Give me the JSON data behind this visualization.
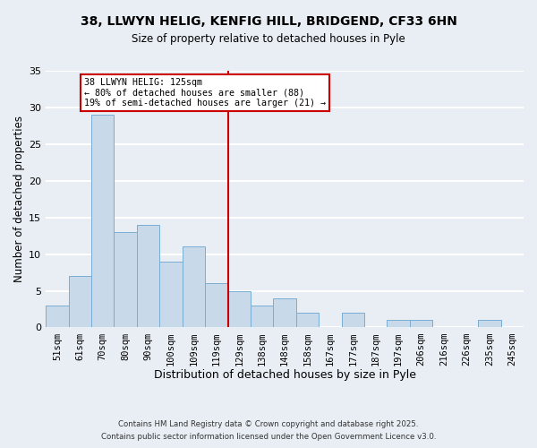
{
  "title": "38, LLWYN HELIG, KENFIG HILL, BRIDGEND, CF33 6HN",
  "subtitle": "Size of property relative to detached houses in Pyle",
  "xlabel": "Distribution of detached houses by size in Pyle",
  "ylabel": "Number of detached properties",
  "bar_color": "#c8daea",
  "bar_edge_color": "#7aadd4",
  "categories": [
    "51sqm",
    "61sqm",
    "70sqm",
    "80sqm",
    "90sqm",
    "100sqm",
    "109sqm",
    "119sqm",
    "129sqm",
    "138sqm",
    "148sqm",
    "158sqm",
    "167sqm",
    "177sqm",
    "187sqm",
    "197sqm",
    "206sqm",
    "216sqm",
    "226sqm",
    "235sqm",
    "245sqm"
  ],
  "values": [
    3,
    7,
    29,
    13,
    14,
    9,
    11,
    6,
    5,
    3,
    4,
    2,
    0,
    2,
    0,
    1,
    1,
    0,
    0,
    1,
    0
  ],
  "vline_color": "#cc0000",
  "annotation_line1": "38 LLWYN HELIG: 125sqm",
  "annotation_line2": "← 80% of detached houses are smaller (88)",
  "annotation_line3": "19% of semi-detached houses are larger (21) →",
  "ylim": [
    0,
    35
  ],
  "yticks": [
    0,
    5,
    10,
    15,
    20,
    25,
    30,
    35
  ],
  "footer1": "Contains HM Land Registry data © Crown copyright and database right 2025.",
  "footer2": "Contains public sector information licensed under the Open Government Licence v3.0.",
  "background_color": "#e8eef4",
  "grid_color": "#d0dce8"
}
